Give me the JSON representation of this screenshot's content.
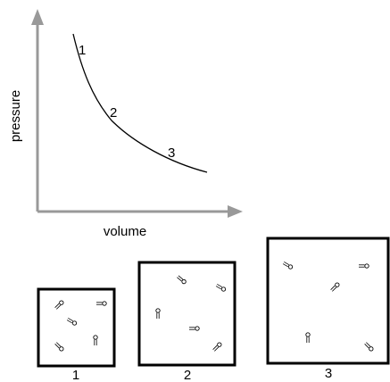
{
  "axes": {
    "y_label": "pressure",
    "x_label": "volume"
  },
  "curve_labels": [
    "1",
    "2",
    "3"
  ],
  "box_labels": [
    "1",
    "2",
    "3"
  ]
}
